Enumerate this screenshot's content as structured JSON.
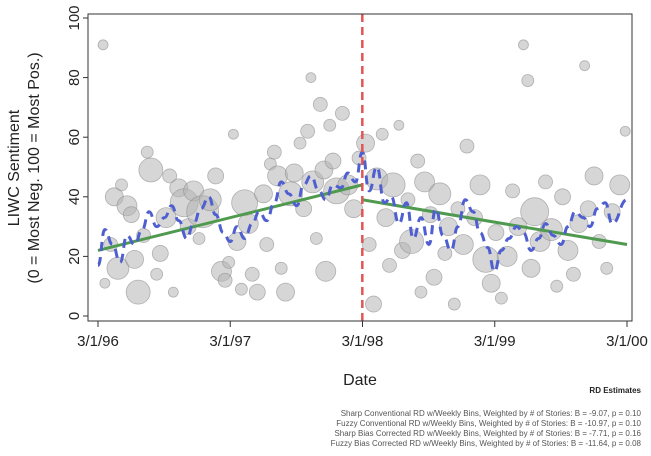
{
  "chart_data": {
    "type": "scatter",
    "xlabel": "Date",
    "ylabel_line1": "LIWC Sentiment",
    "ylabel_line2": "(0 = Most Neg. 100 = Most Pos.)",
    "x_ticks": [
      "3/1/96",
      "3/1/97",
      "3/1/98",
      "3/1/99",
      "3/1/00"
    ],
    "y_ticks": [
      0,
      20,
      40,
      60,
      80,
      100
    ],
    "xlim": [
      "1996-03-01",
      "2000-03-01"
    ],
    "ylim": [
      0,
      100
    ],
    "cutoff_date": "1998-03-01",
    "grid": false,
    "colors": {
      "bubbles": "#b5b5b5",
      "fit_lines": "#4f9a4f",
      "smoother": "#4f5fd0",
      "cutoff": "#e05555"
    },
    "bubbles": [
      {
        "date": "1996-03-15",
        "y": 91,
        "size": 5
      },
      {
        "date": "1996-03-20",
        "y": 11,
        "size": 5
      },
      {
        "date": "1996-04-05",
        "y": 24,
        "size": 7
      },
      {
        "date": "1996-04-15",
        "y": 40,
        "size": 9
      },
      {
        "date": "1996-04-25",
        "y": 16,
        "size": 11
      },
      {
        "date": "1996-05-05",
        "y": 44,
        "size": 6
      },
      {
        "date": "1996-05-20",
        "y": 37,
        "size": 10
      },
      {
        "date": "1996-06-01",
        "y": 34,
        "size": 8
      },
      {
        "date": "1996-06-10",
        "y": 19,
        "size": 9
      },
      {
        "date": "1996-06-20",
        "y": 8,
        "size": 12
      },
      {
        "date": "1996-07-05",
        "y": 27,
        "size": 7
      },
      {
        "date": "1996-07-15",
        "y": 55,
        "size": 6
      },
      {
        "date": "1996-07-25",
        "y": 49,
        "size": 12
      },
      {
        "date": "1996-08-10",
        "y": 14,
        "size": 6
      },
      {
        "date": "1996-08-20",
        "y": 21,
        "size": 8
      },
      {
        "date": "1996-09-05",
        "y": 33,
        "size": 10
      },
      {
        "date": "1996-09-15",
        "y": 47,
        "size": 7
      },
      {
        "date": "1996-09-25",
        "y": 8,
        "size": 5
      },
      {
        "date": "1996-10-10",
        "y": 43,
        "size": 9
      },
      {
        "date": "1996-10-25",
        "y": 38,
        "size": 14
      },
      {
        "date": "1996-11-05",
        "y": 30,
        "size": 8
      },
      {
        "date": "1996-11-20",
        "y": 42,
        "size": 10
      },
      {
        "date": "1996-12-05",
        "y": 26,
        "size": 6
      },
      {
        "date": "1996-12-15",
        "y": 35,
        "size": 16
      },
      {
        "date": "1997-01-05",
        "y": 39,
        "size": 11
      },
      {
        "date": "1997-01-20",
        "y": 47,
        "size": 8
      },
      {
        "date": "1997-02-05",
        "y": 15,
        "size": 10
      },
      {
        "date": "1997-02-15",
        "y": 12,
        "size": 7
      },
      {
        "date": "1997-02-25",
        "y": 18,
        "size": 6
      },
      {
        "date": "1997-03-10",
        "y": 61,
        "size": 5
      },
      {
        "date": "1997-03-20",
        "y": 25,
        "size": 9
      },
      {
        "date": "1997-04-01",
        "y": 9,
        "size": 6
      },
      {
        "date": "1997-04-10",
        "y": 38,
        "size": 13
      },
      {
        "date": "1997-04-20",
        "y": 31,
        "size": 10
      },
      {
        "date": "1997-05-01",
        "y": 14,
        "size": 7
      },
      {
        "date": "1997-05-15",
        "y": 8,
        "size": 8
      },
      {
        "date": "1997-06-01",
        "y": 41,
        "size": 9
      },
      {
        "date": "1997-06-10",
        "y": 24,
        "size": 7
      },
      {
        "date": "1997-06-20",
        "y": 51,
        "size": 6
      },
      {
        "date": "1997-07-01",
        "y": 55,
        "size": 7
      },
      {
        "date": "1997-07-10",
        "y": 47,
        "size": 10
      },
      {
        "date": "1997-07-20",
        "y": 16,
        "size": 6
      },
      {
        "date": "1997-08-01",
        "y": 8,
        "size": 9
      },
      {
        "date": "1997-08-15",
        "y": 41,
        "size": 12
      },
      {
        "date": "1997-08-25",
        "y": 48,
        "size": 9
      },
      {
        "date": "1997-09-10",
        "y": 58,
        "size": 6
      },
      {
        "date": "1997-09-20",
        "y": 36,
        "size": 8
      },
      {
        "date": "1997-10-01",
        "y": 62,
        "size": 7
      },
      {
        "date": "1997-10-10",
        "y": 80,
        "size": 5
      },
      {
        "date": "1997-10-15",
        "y": 45,
        "size": 11
      },
      {
        "date": "1997-10-25",
        "y": 26,
        "size": 6
      },
      {
        "date": "1997-11-05",
        "y": 71,
        "size": 7
      },
      {
        "date": "1997-11-15",
        "y": 49,
        "size": 9
      },
      {
        "date": "1997-11-20",
        "y": 15,
        "size": 10
      },
      {
        "date": "1997-12-01",
        "y": 64,
        "size": 6
      },
      {
        "date": "1997-12-10",
        "y": 52,
        "size": 8
      },
      {
        "date": "1997-12-20",
        "y": 42,
        "size": 13
      },
      {
        "date": "1998-01-05",
        "y": 68,
        "size": 7
      },
      {
        "date": "1998-01-20",
        "y": 44,
        "size": 10
      },
      {
        "date": "1998-02-05",
        "y": 36,
        "size": 9
      },
      {
        "date": "1998-02-20",
        "y": 53,
        "size": 7
      },
      {
        "date": "1998-03-10",
        "y": 58,
        "size": 9
      },
      {
        "date": "1998-03-20",
        "y": 24,
        "size": 7
      },
      {
        "date": "1998-04-01",
        "y": 4,
        "size": 8
      },
      {
        "date": "1998-04-10",
        "y": 46,
        "size": 11
      },
      {
        "date": "1998-04-25",
        "y": 61,
        "size": 6
      },
      {
        "date": "1998-05-05",
        "y": 33,
        "size": 9
      },
      {
        "date": "1998-05-15",
        "y": 17,
        "size": 7
      },
      {
        "date": "1998-05-25",
        "y": 44,
        "size": 12
      },
      {
        "date": "1998-06-10",
        "y": 64,
        "size": 5
      },
      {
        "date": "1998-06-20",
        "y": 22,
        "size": 8
      },
      {
        "date": "1998-07-05",
        "y": 39,
        "size": 7
      },
      {
        "date": "1998-07-15",
        "y": 25,
        "size": 12
      },
      {
        "date": "1998-08-01",
        "y": 52,
        "size": 7
      },
      {
        "date": "1998-08-10",
        "y": 8,
        "size": 6
      },
      {
        "date": "1998-08-20",
        "y": 45,
        "size": 10
      },
      {
        "date": "1998-09-05",
        "y": 34,
        "size": 8
      },
      {
        "date": "1998-09-15",
        "y": 13,
        "size": 8
      },
      {
        "date": "1998-10-01",
        "y": 41,
        "size": 11
      },
      {
        "date": "1998-10-15",
        "y": 21,
        "size": 7
      },
      {
        "date": "1998-10-25",
        "y": 30,
        "size": 9
      },
      {
        "date": "1998-11-10",
        "y": 4,
        "size": 6
      },
      {
        "date": "1998-11-20",
        "y": 36,
        "size": 7
      },
      {
        "date": "1998-12-05",
        "y": 24,
        "size": 10
      },
      {
        "date": "1998-12-15",
        "y": 57,
        "size": 7
      },
      {
        "date": "1999-01-05",
        "y": 33,
        "size": 8
      },
      {
        "date": "1999-01-20",
        "y": 44,
        "size": 10
      },
      {
        "date": "1999-02-05",
        "y": 19,
        "size": 13
      },
      {
        "date": "1999-02-20",
        "y": 11,
        "size": 9
      },
      {
        "date": "1999-03-05",
        "y": 28,
        "size": 8
      },
      {
        "date": "1999-03-20",
        "y": 6,
        "size": 6
      },
      {
        "date": "1999-04-05",
        "y": 20,
        "size": 10
      },
      {
        "date": "1999-04-20",
        "y": 42,
        "size": 7
      },
      {
        "date": "1999-05-05",
        "y": 30,
        "size": 9
      },
      {
        "date": "1999-05-20",
        "y": 91,
        "size": 5
      },
      {
        "date": "1999-06-01",
        "y": 79,
        "size": 6
      },
      {
        "date": "1999-06-10",
        "y": 16,
        "size": 9
      },
      {
        "date": "1999-06-20",
        "y": 35,
        "size": 14
      },
      {
        "date": "1999-07-05",
        "y": 25,
        "size": 10
      },
      {
        "date": "1999-07-20",
        "y": 45,
        "size": 7
      },
      {
        "date": "1999-08-05",
        "y": 29,
        "size": 11
      },
      {
        "date": "1999-08-20",
        "y": 10,
        "size": 6
      },
      {
        "date": "1999-09-05",
        "y": 40,
        "size": 8
      },
      {
        "date": "1999-09-20",
        "y": 22,
        "size": 10
      },
      {
        "date": "1999-10-05",
        "y": 14,
        "size": 7
      },
      {
        "date": "1999-10-20",
        "y": 31,
        "size": 9
      },
      {
        "date": "1999-11-05",
        "y": 84,
        "size": 5
      },
      {
        "date": "1999-11-15",
        "y": 36,
        "size": 8
      },
      {
        "date": "1999-12-01",
        "y": 47,
        "size": 9
      },
      {
        "date": "1999-12-15",
        "y": 25,
        "size": 7
      },
      {
        "date": "2000-01-05",
        "y": 16,
        "size": 6
      },
      {
        "date": "2000-01-20",
        "y": 35,
        "size": 8
      },
      {
        "date": "2000-02-10",
        "y": 44,
        "size": 10
      },
      {
        "date": "2000-02-25",
        "y": 62,
        "size": 5
      }
    ],
    "fit_lines": [
      {
        "x_start": "1996-03-01",
        "y_start": 22,
        "x_end": "1998-03-01",
        "y_end": 44
      },
      {
        "x_start": "1998-03-01",
        "y_start": 39,
        "x_end": "2000-03-01",
        "y_end": 24
      }
    ],
    "smoother": [
      {
        "date": "1996-03-01",
        "y": 17
      },
      {
        "date": "1996-03-20",
        "y": 29
      },
      {
        "date": "1996-04-10",
        "y": 24
      },
      {
        "date": "1996-05-01",
        "y": 18
      },
      {
        "date": "1996-05-20",
        "y": 27
      },
      {
        "date": "1996-06-10",
        "y": 24
      },
      {
        "date": "1996-07-01",
        "y": 29
      },
      {
        "date": "1996-07-20",
        "y": 35
      },
      {
        "date": "1996-08-10",
        "y": 30
      },
      {
        "date": "1996-09-01",
        "y": 33
      },
      {
        "date": "1996-09-20",
        "y": 37
      },
      {
        "date": "1996-10-10",
        "y": 32
      },
      {
        "date": "1996-11-01",
        "y": 26
      },
      {
        "date": "1996-11-20",
        "y": 31
      },
      {
        "date": "1996-12-10",
        "y": 36
      },
      {
        "date": "1997-01-01",
        "y": 40
      },
      {
        "date": "1997-01-20",
        "y": 34
      },
      {
        "date": "1997-02-10",
        "y": 28
      },
      {
        "date": "1997-03-01",
        "y": 25
      },
      {
        "date": "1997-03-20",
        "y": 30
      },
      {
        "date": "1997-04-10",
        "y": 26
      },
      {
        "date": "1997-05-01",
        "y": 31
      },
      {
        "date": "1997-05-20",
        "y": 35
      },
      {
        "date": "1997-06-10",
        "y": 32
      },
      {
        "date": "1997-07-01",
        "y": 38
      },
      {
        "date": "1997-07-20",
        "y": 45
      },
      {
        "date": "1997-08-10",
        "y": 41
      },
      {
        "date": "1997-09-01",
        "y": 37
      },
      {
        "date": "1997-09-20",
        "y": 44
      },
      {
        "date": "1997-10-10",
        "y": 47
      },
      {
        "date": "1997-11-01",
        "y": 42
      },
      {
        "date": "1997-11-20",
        "y": 39
      },
      {
        "date": "1997-12-10",
        "y": 44
      },
      {
        "date": "1998-01-01",
        "y": 43
      },
      {
        "date": "1998-01-20",
        "y": 48
      },
      {
        "date": "1998-02-10",
        "y": 45
      },
      {
        "date": "1998-03-01",
        "y": 55
      },
      {
        "date": "1998-03-20",
        "y": 42
      },
      {
        "date": "1998-04-10",
        "y": 50
      },
      {
        "date": "1998-05-01",
        "y": 38
      },
      {
        "date": "1998-05-20",
        "y": 40
      },
      {
        "date": "1998-06-10",
        "y": 31
      },
      {
        "date": "1998-07-01",
        "y": 38
      },
      {
        "date": "1998-07-20",
        "y": 26
      },
      {
        "date": "1998-08-10",
        "y": 33
      },
      {
        "date": "1998-09-01",
        "y": 24
      },
      {
        "date": "1998-09-20",
        "y": 36
      },
      {
        "date": "1998-10-10",
        "y": 27
      },
      {
        "date": "1998-11-01",
        "y": 22
      },
      {
        "date": "1998-11-20",
        "y": 30
      },
      {
        "date": "1998-12-10",
        "y": 39
      },
      {
        "date": "1999-01-01",
        "y": 35
      },
      {
        "date": "1999-01-20",
        "y": 28
      },
      {
        "date": "1999-02-10",
        "y": 23
      },
      {
        "date": "1999-03-01",
        "y": 15
      },
      {
        "date": "1999-03-20",
        "y": 22
      },
      {
        "date": "1999-04-10",
        "y": 26
      },
      {
        "date": "1999-05-01",
        "y": 30
      },
      {
        "date": "1999-05-20",
        "y": 28
      },
      {
        "date": "1999-06-10",
        "y": 22
      },
      {
        "date": "1999-07-01",
        "y": 26
      },
      {
        "date": "1999-07-20",
        "y": 31
      },
      {
        "date": "1999-08-10",
        "y": 27
      },
      {
        "date": "1999-09-01",
        "y": 24
      },
      {
        "date": "1999-09-20",
        "y": 30
      },
      {
        "date": "1999-10-10",
        "y": 35
      },
      {
        "date": "1999-11-01",
        "y": 33
      },
      {
        "date": "1999-11-20",
        "y": 30
      },
      {
        "date": "1999-12-10",
        "y": 36
      },
      {
        "date": "2000-01-01",
        "y": 38
      },
      {
        "date": "2000-01-20",
        "y": 31
      },
      {
        "date": "2000-03-01",
        "y": 39
      }
    ]
  },
  "notes": {
    "heading": "RD Estimates",
    "lines": [
      "Sharp Conventional RD w/Weekly Bins, Weighted by # of Stories: B = -9.07, p = 0.10",
      "Fuzzy Conventional RD w/Weekly Bins, Weighted by # of Stories: B = -10.97, p = 0.10",
      "Sharp Bias Corrected RD w/Weekly Bins, Weighted by # of Stories: B = -7.71, p = 0.16",
      "Fuzzy Bias Corrected RD w/Weekly Bins, Weighted by # of Stories: B = -11.64, p = 0.08"
    ]
  }
}
